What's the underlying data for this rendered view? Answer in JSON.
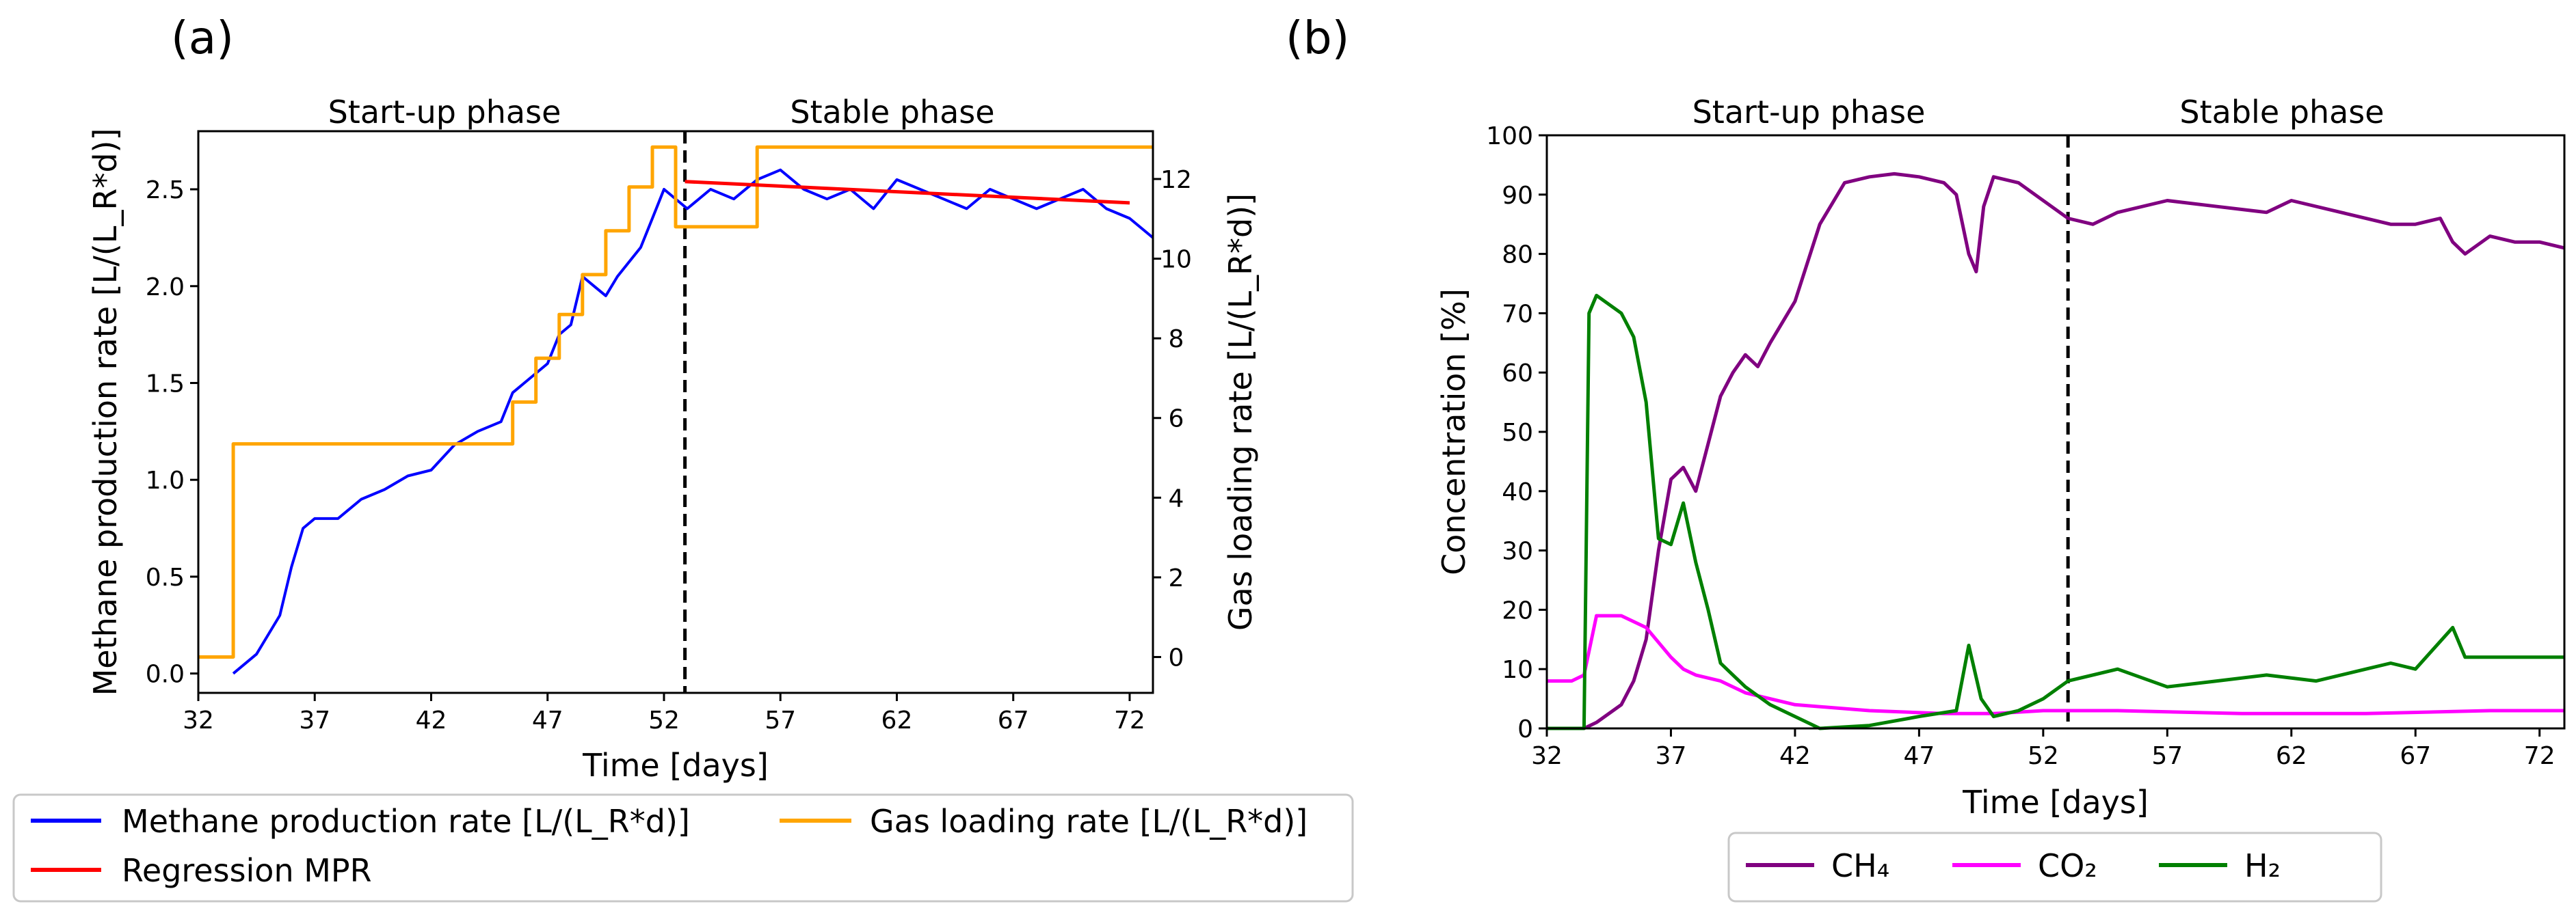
{
  "figure": {
    "panels": [
      {
        "panel_label": "(a)",
        "phase_labels": [
          "Start-up phase",
          "Stable phase"
        ],
        "xlabel": "Time [days]",
        "ylabel_left": "Methane production rate [L/(L_R*d)]",
        "ylabel_right": "Gas loading rate [L/(L_R*d)]",
        "legend": [
          "Methane production rate [L/(L_R*d)]",
          "Gas loading rate [L/(L_R*d)]",
          "Regression MPR"
        ]
      },
      {
        "panel_label": "(b)",
        "phase_labels": [
          "Start-up phase",
          "Stable phase"
        ],
        "xlabel": "Time [days]",
        "ylabel": "Concentration [%]",
        "legend": [
          "CH₄",
          "CO₂",
          "H₂"
        ]
      }
    ]
  },
  "chart_data": [
    {
      "type": "line",
      "panel": "(a)",
      "xlabel": "Time [days]",
      "ylabel": "Methane production rate [L/(L_R*d)]",
      "ylabel_right": "Gas loading rate [L/(L_R*d)]",
      "xlim": [
        32,
        73
      ],
      "ylim": [
        -0.1,
        2.8
      ],
      "ylim_right": [
        -0.9,
        13.2
      ],
      "x_ticks": [
        32,
        37,
        42,
        47,
        52,
        57,
        62,
        67,
        72
      ],
      "y_ticks": [
        0.0,
        0.5,
        1.0,
        1.5,
        2.0,
        2.5
      ],
      "y_ticks_right": [
        0,
        2,
        4,
        6,
        8,
        10,
        12
      ],
      "phase_divider_x": 52.9,
      "phase_labels": [
        "Start-up phase",
        "Stable phase"
      ],
      "legend_position": "below",
      "colors": {
        "methane": "#0000ff",
        "gas_loading": "#ffa500",
        "regression": "#ff0000",
        "divider": "#000000"
      },
      "series": [
        {
          "name": "Methane production rate [L/(L_R*d)]",
          "axis": "left",
          "x": [
            33.5,
            34.5,
            35.5,
            36.0,
            36.5,
            37.0,
            38.0,
            39.0,
            40.0,
            41.0,
            42.0,
            43.0,
            44.0,
            45.0,
            45.5,
            46.0,
            47.0,
            47.5,
            48.0,
            48.5,
            49.0,
            49.5,
            50.0,
            51.0,
            51.5,
            52.0,
            53.0,
            54.0,
            55.0,
            56.0,
            57.0,
            58.0,
            59.0,
            60.0,
            61.0,
            62.0,
            63.0,
            64.0,
            65.0,
            66.0,
            67.0,
            68.0,
            69.0,
            70.0,
            71.0,
            72.0,
            73.0
          ],
          "y": [
            0.0,
            0.1,
            0.3,
            0.55,
            0.75,
            0.8,
            0.8,
            0.9,
            0.95,
            1.02,
            1.05,
            1.18,
            1.25,
            1.3,
            1.45,
            1.5,
            1.6,
            1.75,
            1.8,
            2.05,
            2.0,
            1.95,
            2.05,
            2.2,
            2.35,
            2.5,
            2.4,
            2.5,
            2.45,
            2.55,
            2.6,
            2.5,
            2.45,
            2.5,
            2.4,
            2.55,
            2.5,
            2.45,
            2.4,
            2.5,
            2.45,
            2.4,
            2.45,
            2.5,
            2.4,
            2.35,
            2.25
          ]
        },
        {
          "name": "Gas loading rate [L/(L_R*d)]",
          "axis": "right",
          "x": [
            32,
            33.5,
            33.5,
            45.5,
            45.5,
            46.5,
            46.5,
            47.5,
            47.5,
            48.5,
            48.5,
            49.5,
            49.5,
            50.5,
            50.5,
            51.5,
            51.5,
            52.5,
            52.5,
            56.0,
            56.0,
            56.1,
            56.1,
            73
          ],
          "y": [
            0,
            0,
            5.35,
            5.35,
            6.4,
            6.4,
            7.5,
            7.5,
            8.6,
            8.6,
            9.6,
            9.6,
            10.7,
            10.7,
            11.8,
            11.8,
            12.8,
            12.8,
            10.8,
            10.8,
            12.8,
            12.8,
            12.8,
            12.8
          ]
        },
        {
          "name": "Regression MPR",
          "axis": "left",
          "x": [
            52.9,
            72.0
          ],
          "y": [
            2.54,
            2.43
          ]
        }
      ]
    },
    {
      "type": "line",
      "panel": "(b)",
      "xlabel": "Time [days]",
      "ylabel": "Concentration [%]",
      "xlim": [
        32,
        73
      ],
      "ylim": [
        0,
        100
      ],
      "x_ticks": [
        32,
        37,
        42,
        47,
        52,
        57,
        62,
        67,
        72
      ],
      "y_ticks": [
        0,
        10,
        20,
        30,
        40,
        50,
        60,
        70,
        80,
        90,
        100
      ],
      "phase_divider_x": 53.0,
      "phase_labels": [
        "Start-up phase",
        "Stable phase"
      ],
      "legend_position": "below",
      "colors": {
        "ch4": "#800080",
        "co2": "#ff00ff",
        "h2": "#008000",
        "divider": "#000000"
      },
      "series": [
        {
          "name": "CH₄",
          "x": [
            32,
            33.5,
            34.0,
            35.0,
            35.5,
            36.0,
            36.5,
            37.0,
            37.5,
            38.0,
            38.5,
            39.0,
            39.5,
            40.0,
            40.5,
            41.0,
            42.0,
            43.0,
            44.0,
            45.0,
            46.0,
            47.0,
            48.0,
            48.5,
            49.0,
            49.3,
            49.6,
            50.0,
            51.0,
            52.0,
            53.0,
            54.0,
            55.0,
            57.0,
            59.0,
            61.0,
            62.0,
            64.0,
            66.0,
            67.0,
            68.0,
            68.5,
            69.0,
            70.0,
            71.0,
            72.0,
            73.0
          ],
          "y": [
            0,
            0,
            1,
            4,
            8,
            15,
            30,
            42,
            44,
            40,
            48,
            56,
            60,
            63,
            61,
            65,
            72,
            85,
            92,
            93,
            93.5,
            93,
            92,
            90,
            80,
            77,
            88,
            93,
            92,
            89,
            86,
            85,
            87,
            89,
            88,
            87,
            89,
            87,
            85,
            85,
            86,
            82,
            80,
            83,
            82,
            82,
            81
          ]
        },
        {
          "name": "CO₂",
          "x": [
            32,
            33.0,
            33.5,
            34.0,
            35.0,
            36.0,
            37.0,
            37.5,
            38.0,
            39.0,
            40.0,
            42.0,
            45.0,
            48.0,
            50.0,
            52.0,
            53.0,
            55.0,
            60.0,
            65.0,
            70.0,
            73.0
          ],
          "y": [
            8,
            8,
            9,
            19,
            19,
            17,
            12,
            10,
            9,
            8,
            6,
            4,
            3,
            2.5,
            2.5,
            3,
            3,
            3,
            2.5,
            2.5,
            3,
            3
          ]
        },
        {
          "name": "H₂",
          "x": [
            32,
            33.5,
            33.7,
            34.0,
            35.0,
            35.5,
            36.0,
            36.5,
            37.0,
            37.5,
            38.0,
            38.5,
            39.0,
            39.5,
            40.0,
            41.0,
            42.0,
            43.0,
            45.0,
            47.0,
            48.5,
            49.0,
            49.5,
            50.0,
            51.0,
            52.0,
            53.0,
            55.0,
            57.0,
            59.0,
            61.0,
            63.0,
            65.0,
            66.0,
            67.0,
            68.5,
            69.0,
            71.0,
            73.0
          ],
          "y": [
            0,
            0,
            70,
            73,
            70,
            66,
            55,
            32,
            31,
            38,
            28,
            20,
            11,
            9,
            7,
            4,
            2,
            0,
            0.5,
            2,
            3,
            14,
            5,
            2,
            3,
            5,
            8,
            10,
            7,
            8,
            9,
            8,
            10,
            11,
            10,
            17,
            12,
            12,
            12
          ]
        }
      ]
    }
  ]
}
